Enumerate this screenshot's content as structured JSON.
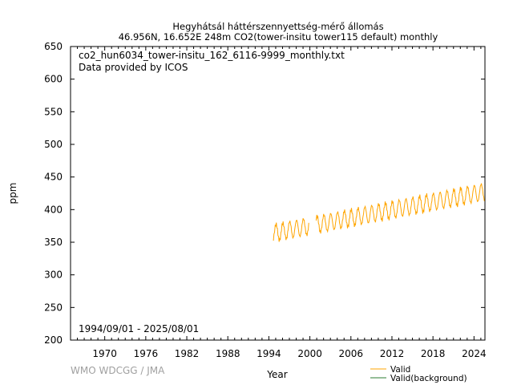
{
  "chart_data": {
    "type": "line",
    "title": "Hegyhátsál háttérszennyettség-mérő állomás",
    "subtitle": "46.956N, 16.652E 248m    CO2(tower-insitu tower115 default) monthly",
    "xlabel": "Year",
    "ylabel": "ppm",
    "xlim": [
      1965.0,
      2025.6
    ],
    "ylim": [
      200,
      650
    ],
    "x_ticks": [
      1970,
      1976,
      1982,
      1988,
      1994,
      2000,
      2006,
      2012,
      2018,
      2024
    ],
    "y_ticks": [
      200,
      250,
      300,
      350,
      400,
      450,
      500,
      550,
      600,
      650
    ],
    "annotations": {
      "filename": "co2_hun6034_tower-insitu_162_6116-9999_monthly.txt",
      "provider": "Data provided by ICOS",
      "date_range": "1994/09/01 - 2025/08/01",
      "credit": "WMO WDCGG / JMA"
    },
    "legend": {
      "placement": "bottom-right",
      "entries": [
        {
          "label": "Valid",
          "color": "#ffa500"
        },
        {
          "label": "Valid(background)",
          "color": "#2e7d32"
        }
      ]
    },
    "series": [
      {
        "name": "Valid",
        "color": "#ffa500",
        "start_year": 1994.67,
        "end_year": 2025.58,
        "trend_start_ppm": 364,
        "trend_slope_ppm_per_year": 2.05,
        "seasonal_amplitude_ppm": 13,
        "gaps": [
          [
            1999.9,
            2000.9
          ]
        ]
      }
    ]
  }
}
